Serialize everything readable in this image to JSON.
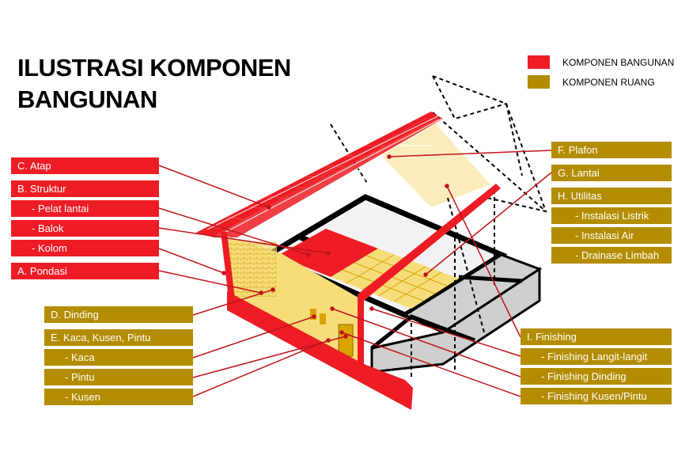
{
  "title": {
    "line1": "ILUSTRASI KOMPONEN",
    "line2": "BANGUNAN"
  },
  "legend": [
    {
      "label": "KOMPONEN BANGUNAN",
      "color": "#ee1c25"
    },
    {
      "label": "KOMPONEN RUANG",
      "color": "#b38c00"
    }
  ],
  "labels": {
    "atap": "C. Atap",
    "struktur": "B. Struktur",
    "pelat_lantai": "- Pelat lantai",
    "balok": "- Balok",
    "kolom": "- Kolom",
    "pondasi": "A. Pondasi",
    "dinding": "D. Dinding",
    "kaca_kusen_pintu": "E. Kaca, Kusen, Pintu",
    "kaca": "- Kaca",
    "pintu": "- Pintu",
    "kusen": "- Kusen",
    "plafon": "F. Plafon",
    "lantai": "G. Lantai",
    "utilitas": "H. Utilitas",
    "instalasi_listrik": "- Instalasi Listrik",
    "instalasi_air": "- Instalasi Air",
    "drainase_limbah": "- Drainase Limbah",
    "finishing": "I. Finishing",
    "finishing_langit": "- Finishing Langit-langit",
    "finishing_dinding": "- Finishing Dinding",
    "finishing_kusen": "- Finishing Kusen/Pintu"
  },
  "colors": {
    "bangunan": "#ee1c25",
    "ruang": "#b38c00",
    "wall": "#f7dd7a",
    "slab": "#cfcfcf"
  }
}
